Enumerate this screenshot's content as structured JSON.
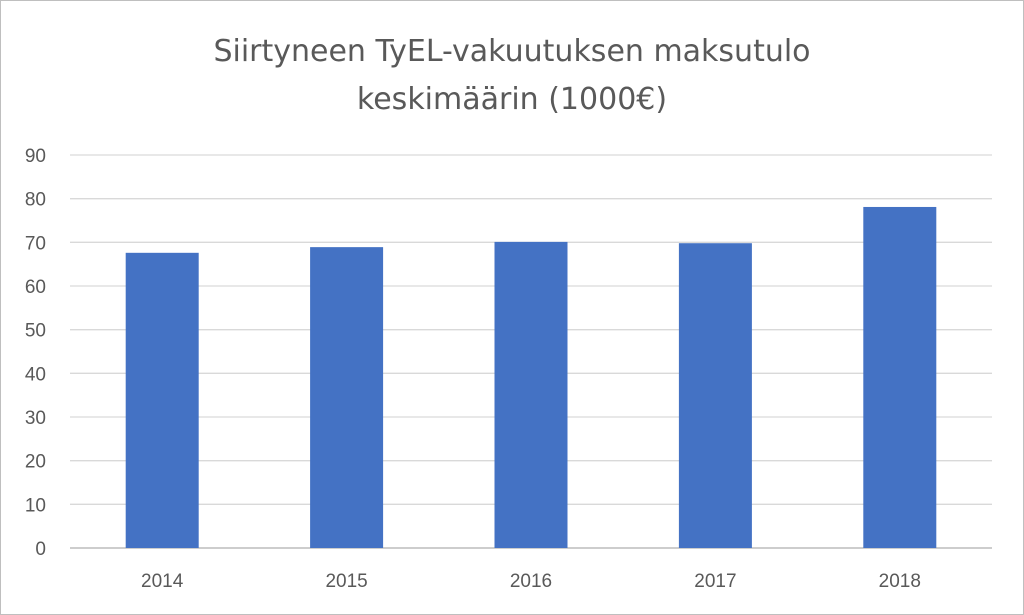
{
  "chart_data": {
    "type": "bar",
    "title_lines": [
      "Siirtyneen TyEL-vakuutuksen maksutulo",
      "keskimäärin (1000€)"
    ],
    "categories": [
      "2014",
      "2015",
      "2016",
      "2017",
      "2018"
    ],
    "values": [
      67.6,
      68.9,
      70.1,
      69.8,
      78.1
    ],
    "ylim": [
      0,
      90
    ],
    "yticks": [
      0,
      10,
      20,
      30,
      40,
      50,
      60,
      70,
      80,
      90
    ],
    "grid": true,
    "legend": "none",
    "colors": {
      "bar": "#4472C4",
      "grid": "#d9d9d9",
      "text": "#595959"
    }
  }
}
